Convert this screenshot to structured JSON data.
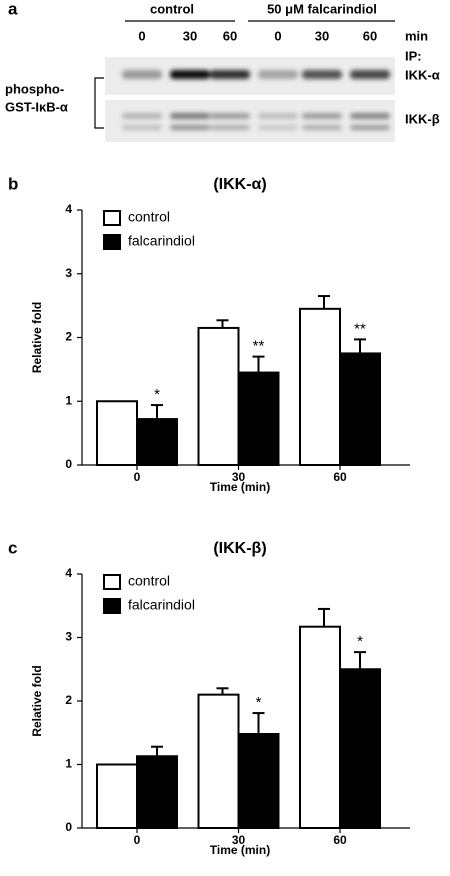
{
  "blot": {
    "label": "a",
    "groups": [
      {
        "name": "control",
        "times": [
          "0",
          "30",
          "60"
        ]
      },
      {
        "name": "50 μM falcarindiol",
        "times": [
          "0",
          "30",
          "60"
        ]
      }
    ],
    "time_label": "min",
    "ip_label": "IP:",
    "rows": [
      "IKK-α",
      "IKK-β"
    ],
    "substrate": [
      "phospho-",
      "GST-IκB-α"
    ]
  },
  "chart_data": [
    {
      "type": "bar",
      "label": "b",
      "title": "(IKK-α)",
      "y_label": "Relative fold",
      "x_label": "Time (min)",
      "categories": [
        "0",
        "30",
        "60"
      ],
      "series": [
        {
          "name": "control",
          "color": "#ffffff",
          "values": [
            1.0,
            2.15,
            2.45
          ],
          "errors": [
            0,
            0.12,
            0.2
          ]
        },
        {
          "name": "falcarindiol",
          "color": "#000000",
          "values": [
            0.72,
            1.45,
            1.75
          ],
          "errors": [
            0.22,
            0.25,
            0.22
          ],
          "annotations": [
            "*",
            "**",
            "**"
          ]
        }
      ],
      "ylim": [
        0,
        4
      ],
      "yticks": [
        0,
        1,
        2,
        3,
        4
      ],
      "legend": "upper left"
    },
    {
      "type": "bar",
      "label": "c",
      "title": "(IKK-β)",
      "y_label": "Relative fold",
      "x_label": "Time (min)",
      "categories": [
        "0",
        "30",
        "60"
      ],
      "series": [
        {
          "name": "control",
          "color": "#ffffff",
          "values": [
            1.0,
            2.1,
            3.17
          ],
          "errors": [
            0,
            0.1,
            0.28
          ]
        },
        {
          "name": "falcarindiol",
          "color": "#000000",
          "values": [
            1.13,
            1.48,
            2.5
          ],
          "errors": [
            0.15,
            0.33,
            0.27
          ],
          "annotations": [
            null,
            "*",
            "*"
          ]
        }
      ],
      "ylim": [
        0,
        4
      ],
      "yticks": [
        0,
        1,
        2,
        3,
        4
      ],
      "legend": "upper left"
    }
  ]
}
